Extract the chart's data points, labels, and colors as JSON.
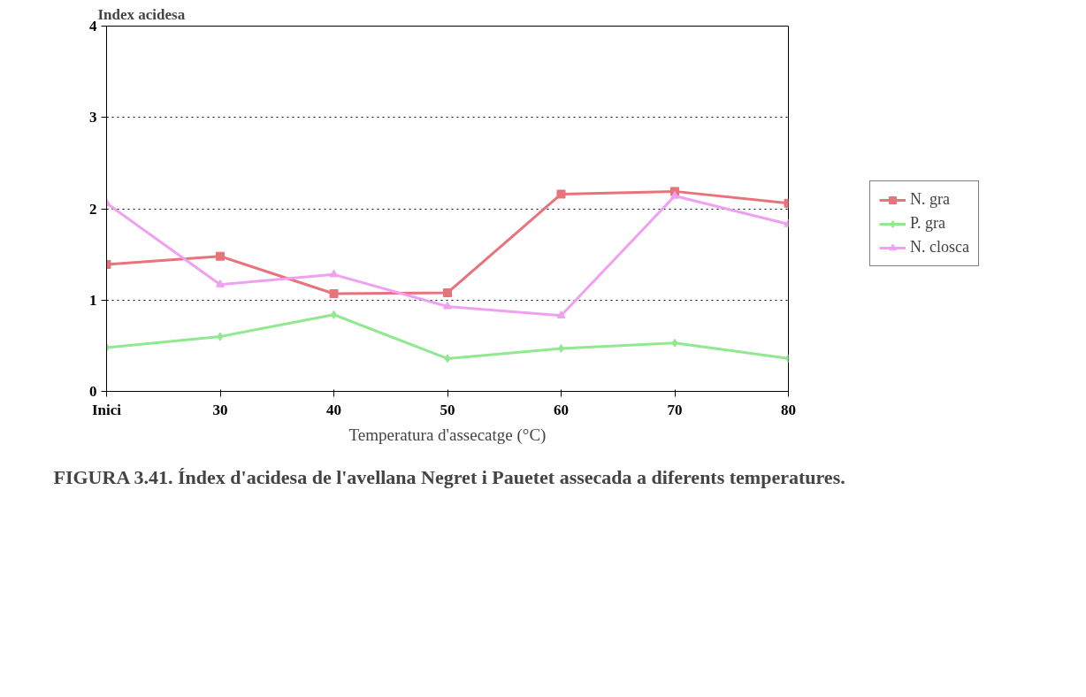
{
  "chart_data": {
    "type": "line",
    "ylabel": "Index acidesa",
    "xlabel": "Temperatura d'assecatge (°C)",
    "categories": [
      "Inici",
      "30",
      "40",
      "50",
      "60",
      "70",
      "80"
    ],
    "series": [
      {
        "name": "N. gra",
        "color": "#e8737a",
        "marker": "square",
        "values": [
          1.39,
          1.48,
          1.07,
          1.08,
          2.16,
          2.19,
          2.06
        ]
      },
      {
        "name": "P. gra",
        "color": "#90e890",
        "marker": "diamond",
        "values": [
          0.48,
          0.6,
          0.84,
          0.36,
          0.47,
          0.53,
          0.36
        ]
      },
      {
        "name": "N. closca",
        "color": "#f0a0f0",
        "marker": "triangle",
        "values": [
          2.06,
          1.17,
          1.28,
          0.93,
          0.83,
          2.14,
          1.83
        ]
      }
    ],
    "ylim": [
      0,
      4
    ],
    "yticks": [
      0,
      1,
      2,
      3,
      4
    ],
    "grid": "y",
    "legend": "right",
    "line_style": "solid",
    "annotations": [
      "FIGURA 3.41. Índex d'acidesa de l'avellana Negret i Pauetet assecada a diferents temperatures."
    ]
  }
}
